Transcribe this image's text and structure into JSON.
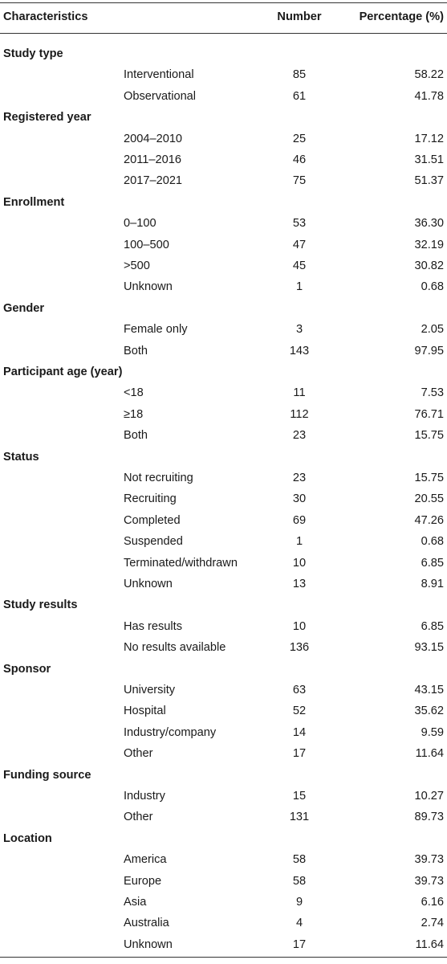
{
  "header": {
    "characteristics": "Characteristics",
    "number": "Number",
    "percentage": "Percentage (%)"
  },
  "groups": [
    {
      "title": "Study type",
      "rows": [
        {
          "label": "Interventional",
          "number": "85",
          "pct": "58.22"
        },
        {
          "label": "Observational",
          "number": "61",
          "pct": "41.78"
        }
      ]
    },
    {
      "title": "Registered year",
      "rows": [
        {
          "label": "2004–2010",
          "number": "25",
          "pct": "17.12"
        },
        {
          "label": "2011–2016",
          "number": "46",
          "pct": "31.51"
        },
        {
          "label": "2017–2021",
          "number": "75",
          "pct": "51.37"
        }
      ]
    },
    {
      "title": "Enrollment",
      "rows": [
        {
          "label": "0–100",
          "number": "53",
          "pct": "36.30"
        },
        {
          "label": "100–500",
          "number": "47",
          "pct": "32.19"
        },
        {
          "label": ">500",
          "number": "45",
          "pct": "30.82"
        },
        {
          "label": "Unknown",
          "number": "1",
          "pct": "0.68"
        }
      ]
    },
    {
      "title": "Gender",
      "rows": [
        {
          "label": "Female only",
          "number": "3",
          "pct": "2.05"
        },
        {
          "label": "Both",
          "number": "143",
          "pct": "97.95"
        }
      ]
    },
    {
      "title": "Participant age (year)",
      "rows": [
        {
          "label": "<18",
          "number": "11",
          "pct": "7.53"
        },
        {
          "label": "≥18",
          "number": "112",
          "pct": "76.71"
        },
        {
          "label": "Both",
          "number": "23",
          "pct": "15.75"
        }
      ]
    },
    {
      "title": "Status",
      "rows": [
        {
          "label": "Not recruiting",
          "number": "23",
          "pct": "15.75"
        },
        {
          "label": "Recruiting",
          "number": "30",
          "pct": "20.55"
        },
        {
          "label": "Completed",
          "number": "69",
          "pct": "47.26"
        },
        {
          "label": "Suspended",
          "number": "1",
          "pct": "0.68"
        },
        {
          "label": "Terminated/withdrawn",
          "number": "10",
          "pct": "6.85"
        },
        {
          "label": "Unknown",
          "number": "13",
          "pct": "8.91"
        }
      ]
    },
    {
      "title": "Study results",
      "rows": [
        {
          "label": "Has results",
          "number": "10",
          "pct": "6.85"
        },
        {
          "label": "No results available",
          "number": "136",
          "pct": "93.15"
        }
      ]
    },
    {
      "title": "Sponsor",
      "rows": [
        {
          "label": "University",
          "number": "63",
          "pct": "43.15"
        },
        {
          "label": "Hospital",
          "number": "52",
          "pct": "35.62"
        },
        {
          "label": "Industry/company",
          "number": "14",
          "pct": "9.59"
        },
        {
          "label": "Other",
          "number": "17",
          "pct": "11.64"
        }
      ]
    },
    {
      "title": "Funding source",
      "rows": [
        {
          "label": "Industry",
          "number": "15",
          "pct": "10.27"
        },
        {
          "label": "Other",
          "number": "131",
          "pct": "89.73"
        }
      ]
    },
    {
      "title": "Location",
      "rows": [
        {
          "label": "America",
          "number": "58",
          "pct": "39.73"
        },
        {
          "label": "Europe",
          "number": "58",
          "pct": "39.73"
        },
        {
          "label": "Asia",
          "number": "9",
          "pct": "6.16"
        },
        {
          "label": "Australia",
          "number": "4",
          "pct": "2.74"
        },
        {
          "label": "Unknown",
          "number": "17",
          "pct": "11.64"
        }
      ]
    }
  ]
}
